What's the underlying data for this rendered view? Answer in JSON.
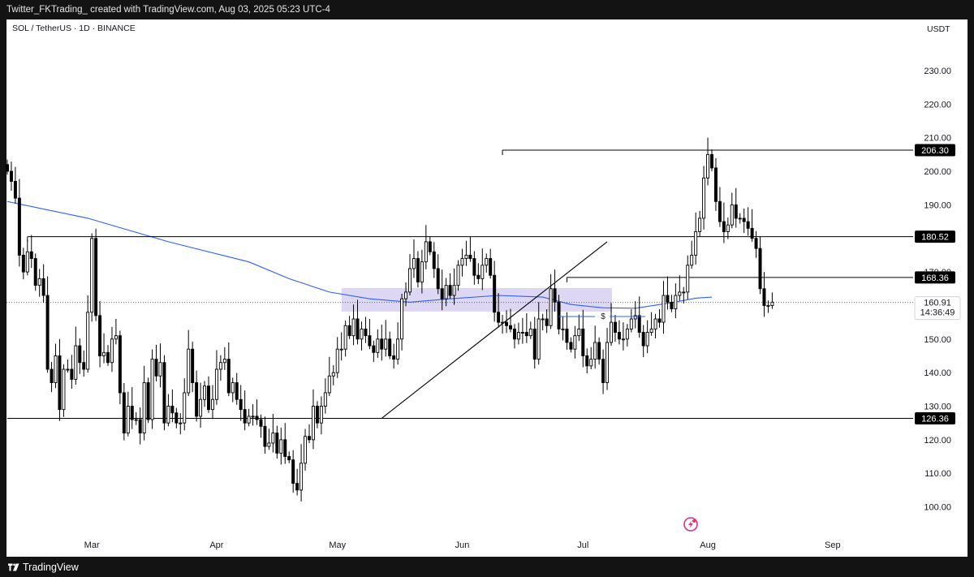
{
  "header": {
    "caption": "Twitter_FKTrading_ created with TradingView.com, Aug 03, 2025 05:23 UTC-4"
  },
  "chart_header": {
    "symbol": "SOL / TetherUS · 1D · BINANCE",
    "currency": "USDT"
  },
  "footer": {
    "brand": "TradingView"
  },
  "chart_data": {
    "type": "candlestick",
    "title": "SOL / TetherUS · 1D · BINANCE",
    "ylim": [
      95,
      243
    ],
    "y_ticks": [
      100,
      110,
      120,
      130,
      140,
      150,
      160,
      170,
      180,
      190,
      200,
      210,
      220,
      230
    ],
    "y_tick_labels": [
      "100.00",
      "110.00",
      "120.00",
      "130.00",
      "140.00",
      "150.00",
      "160.00",
      "170.00",
      "180.00",
      "190.00",
      "200.00",
      "210.00",
      "220.00",
      "230.00"
    ],
    "x_months": [
      {
        "label": "Mar",
        "day": 21
      },
      {
        "label": "Apr",
        "day": 52
      },
      {
        "label": "May",
        "day": 82
      },
      {
        "label": "Jun",
        "day": 113
      },
      {
        "label": "Jul",
        "day": 143
      },
      {
        "label": "Aug",
        "day": 174
      },
      {
        "label": "Sep",
        "day": 205
      }
    ],
    "x_domain_days": [
      0,
      225
    ],
    "closes": [
      200,
      197,
      192,
      175,
      170,
      176,
      174,
      166,
      168,
      163,
      141,
      137,
      145,
      129,
      141,
      141,
      138,
      148,
      143,
      141,
      158,
      180,
      157,
      145,
      146,
      143,
      150,
      151,
      134,
      122,
      130,
      126,
      126,
      122,
      137,
      126,
      144,
      139,
      143,
      125,
      130,
      128,
      125,
      125,
      134,
      147,
      137,
      127,
      132,
      136,
      129,
      132,
      141,
      143,
      144,
      134,
      137,
      132,
      129,
      125,
      127,
      127,
      126,
      124,
      118,
      119,
      122,
      116,
      120,
      115,
      114,
      107,
      105,
      113,
      121,
      120,
      130,
      125,
      130,
      134,
      139,
      140,
      147,
      147,
      154,
      151,
      156,
      150,
      153,
      151,
      148,
      146,
      150,
      147,
      150,
      145,
      144,
      150,
      162,
      164,
      171,
      174,
      167,
      173,
      179,
      176,
      171,
      165,
      162,
      166,
      163,
      166,
      172,
      174,
      175,
      174,
      169,
      168,
      172,
      174,
      169,
      158,
      155,
      155,
      154,
      153,
      150,
      152,
      152,
      151,
      153,
      144,
      156,
      156,
      154,
      165,
      161,
      153,
      153,
      149,
      147,
      151,
      153,
      145,
      142,
      144,
      149,
      144,
      137,
      149,
      155,
      152,
      150,
      150,
      153,
      156,
      157,
      152,
      148,
      152,
      153,
      156,
      155,
      163,
      161,
      159,
      163,
      164,
      164,
      172,
      175,
      182,
      186,
      198,
      205,
      201,
      191,
      185,
      182,
      184,
      190,
      186,
      186,
      185,
      183,
      180,
      177,
      165,
      160,
      160,
      161
    ],
    "series": [
      {
        "name": "",
        "kind": "ma",
        "color": "#2962ff",
        "points": [
          [
            0,
            191
          ],
          [
            20,
            186
          ],
          [
            40,
            179
          ],
          [
            60,
            173
          ],
          [
            70,
            168
          ],
          [
            80,
            164
          ],
          [
            90,
            162
          ],
          [
            100,
            161
          ],
          [
            110,
            162
          ],
          [
            122,
            163
          ],
          [
            133,
            162.5
          ],
          [
            140,
            160.3
          ],
          [
            148,
            159.3
          ],
          [
            156,
            159.2
          ],
          [
            165,
            160.8
          ],
          [
            171,
            162.2
          ],
          [
            175,
            162.5
          ]
        ]
      }
    ],
    "horizontal_levels": [
      {
        "value": 206.3,
        "label": "206.30",
        "from_day": 123
      },
      {
        "value": 180.52,
        "label": "180.52",
        "from_day": 5
      },
      {
        "value": 168.36,
        "label": "168.36",
        "from_day": 139
      },
      {
        "value": 126.36,
        "label": "126.36",
        "from_day": 0
      }
    ],
    "current_price": {
      "value": 160.91,
      "label": "160.91",
      "countdown": "14:36:49"
    },
    "zone": {
      "from_day": 83,
      "to_day": 149,
      "low": 158.2,
      "high": 165.2,
      "color": "#d9d3f2"
    },
    "trendline": {
      "from": [
        93,
        126.4
      ],
      "to": [
        149,
        179
      ]
    },
    "marker": {
      "text": "$",
      "day": 148,
      "value": 156
    }
  }
}
